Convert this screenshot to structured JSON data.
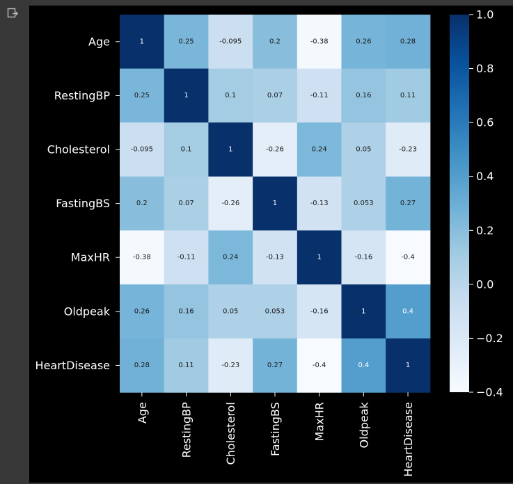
{
  "output_icon": "output-redirect-icon",
  "chart_data": {
    "type": "heatmap",
    "title": "",
    "xlabel": "",
    "ylabel": "",
    "row_labels": [
      "Age",
      "RestingBP",
      "Cholesterol",
      "FastingBS",
      "MaxHR",
      "Oldpeak",
      "HeartDisease"
    ],
    "col_labels": [
      "Age",
      "RestingBP",
      "Cholesterol",
      "FastingBS",
      "MaxHR",
      "Oldpeak",
      "HeartDisease"
    ],
    "cell_labels": [
      [
        "1",
        "0.25",
        "-0.095",
        "0.2",
        "-0.38",
        "0.26",
        "0.28"
      ],
      [
        "0.25",
        "1",
        "0.1",
        "0.07",
        "-0.11",
        "0.16",
        "0.11"
      ],
      [
        "-0.095",
        "0.1",
        "1",
        "-0.26",
        "0.24",
        "0.05",
        "-0.23"
      ],
      [
        "0.2",
        "0.07",
        "-0.26",
        "1",
        "-0.13",
        "0.053",
        "0.27"
      ],
      [
        "-0.38",
        "-0.11",
        "0.24",
        "-0.13",
        "1",
        "-0.16",
        "-0.4"
      ],
      [
        "0.26",
        "0.16",
        "0.05",
        "0.053",
        "-0.16",
        "1",
        "0.4"
      ],
      [
        "0.28",
        "0.11",
        "-0.23",
        "0.27",
        "-0.4",
        "0.4",
        "1"
      ]
    ],
    "values": [
      [
        1,
        0.25,
        -0.095,
        0.2,
        -0.38,
        0.26,
        0.28
      ],
      [
        0.25,
        1,
        0.1,
        0.07,
        -0.11,
        0.16,
        0.11
      ],
      [
        -0.095,
        0.1,
        1,
        -0.26,
        0.24,
        0.05,
        -0.23
      ],
      [
        0.2,
        0.07,
        -0.26,
        1,
        -0.13,
        0.053,
        0.27
      ],
      [
        -0.38,
        -0.11,
        0.24,
        -0.13,
        1,
        -0.16,
        -0.4
      ],
      [
        0.26,
        0.16,
        0.05,
        0.053,
        -0.16,
        1,
        0.4
      ],
      [
        0.28,
        0.11,
        -0.23,
        0.27,
        -0.4,
        0.4,
        1
      ]
    ],
    "vmin": -0.4,
    "vmax": 1.0,
    "colormap": "Blues",
    "colorbar": {
      "ticks": [
        1.0,
        0.8,
        0.6,
        0.4,
        0.2,
        0.0,
        -0.2,
        -0.4
      ],
      "tick_labels": [
        "1.0",
        "0.8",
        "0.6",
        "0.4",
        "0.2",
        "0.0",
        "−0.2",
        "−0.4"
      ]
    },
    "grid": false,
    "colors": {
      "background": "#000000",
      "text": "#ffffff",
      "cell_text_dark": "#1a1a1a",
      "cell_text_light": "#ffffff",
      "colormap_stops": [
        "#f7fbff",
        "#deebf7",
        "#c6dbef",
        "#9ecae1",
        "#6baed6",
        "#4292c6",
        "#2171b5",
        "#08519c",
        "#08306b"
      ]
    }
  }
}
